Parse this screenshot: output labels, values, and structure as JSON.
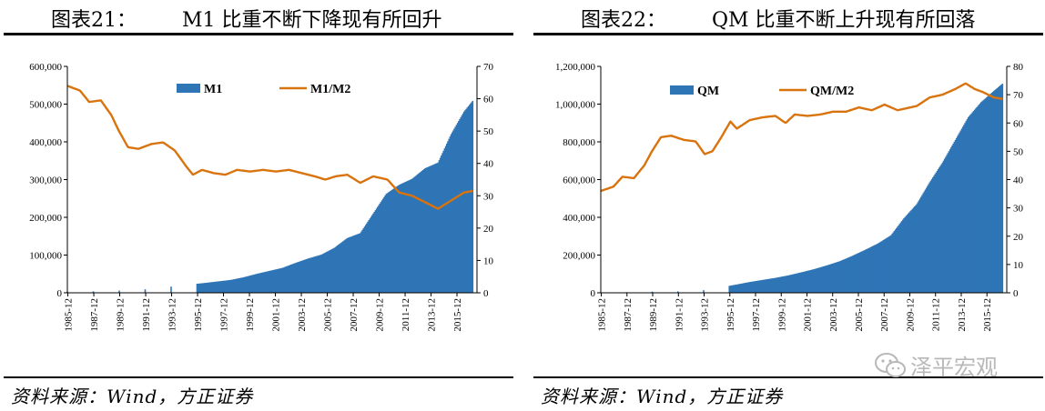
{
  "left": {
    "figure_number": "图表21：",
    "title": "M1 比重不断下降现有所回升",
    "source": "资料来源：Wind，方正证券"
  },
  "right": {
    "figure_number": "图表22：",
    "title": "QM 比重不断上升现有所回落",
    "source": "资料来源：Wind，方正证券"
  },
  "watermark": {
    "text": "泽平宏观",
    "icon": "wechat-icon"
  },
  "chart_data": [
    {
      "type": "bar+line",
      "title": "M1 比重不断下降现有所回升",
      "x_tick_labels": [
        "1985-12",
        "1987-12",
        "1989-12",
        "1991-12",
        "1993-12",
        "1995-12",
        "1997-12",
        "1999-12",
        "2001-12",
        "2003-12",
        "2005-12",
        "2007-12",
        "2009-12",
        "2011-12",
        "2013-12",
        "2015-12"
      ],
      "x_range": [
        1985.92,
        2017.5
      ],
      "y_left": {
        "ticks": [
          "0",
          "100,000",
          "200,000",
          "300,000",
          "400,000",
          "500,000",
          "600,000"
        ],
        "range": [
          0,
          600000
        ]
      },
      "y_right": {
        "ticks": [
          "0",
          "10",
          "20",
          "30",
          "40",
          "50",
          "60",
          "70"
        ],
        "range": [
          0,
          70
        ]
      },
      "legend_position": "top-center",
      "series": [
        {
          "name": "M1",
          "kind": "bar",
          "axis": "left",
          "color": "#2e75b6",
          "points": [
            [
              1985.92,
              2800
            ],
            [
              1987.92,
              3900
            ],
            [
              1989.92,
              6000
            ],
            [
              1991.92,
              9200
            ],
            [
              1993.92,
              16300
            ],
            [
              1995.92,
              23900
            ],
            [
              1996.5,
              26000
            ],
            [
              1997.5,
              30000
            ],
            [
              1998.5,
              34000
            ],
            [
              1999.5,
              41000
            ],
            [
              2000.5,
              50000
            ],
            [
              2001.5,
              58000
            ],
            [
              2002.5,
              66000
            ],
            [
              2003.5,
              79000
            ],
            [
              2004.5,
              91000
            ],
            [
              2005.5,
              101000
            ],
            [
              2006.5,
              119000
            ],
            [
              2007.5,
              145000
            ],
            [
              2008.5,
              158000
            ],
            [
              2009.5,
              210000
            ],
            [
              2010.5,
              262000
            ],
            [
              2011.5,
              286000
            ],
            [
              2012.5,
              302000
            ],
            [
              2013.5,
              330000
            ],
            [
              2014.5,
              345000
            ],
            [
              2015.5,
              420000
            ],
            [
              2016.5,
              480000
            ],
            [
              2017.2,
              510000
            ]
          ]
        },
        {
          "name": "M1/M2",
          "kind": "line",
          "axis": "right",
          "color": "#d9730d",
          "points": [
            [
              1985.92,
              64
            ],
            [
              1986.9,
              62.5
            ],
            [
              1987.6,
              59
            ],
            [
              1988.5,
              59.5
            ],
            [
              1989.3,
              55
            ],
            [
              1989.9,
              50
            ],
            [
              1990.6,
              45
            ],
            [
              1991.4,
              44.5
            ],
            [
              1992.4,
              46
            ],
            [
              1993.3,
              46.5
            ],
            [
              1994.2,
              44
            ],
            [
              1995.1,
              39
            ],
            [
              1995.6,
              36.5
            ],
            [
              1996.3,
              38
            ],
            [
              1997.2,
              37
            ],
            [
              1998.1,
              36.5
            ],
            [
              1999.0,
              38
            ],
            [
              2000.0,
              37.5
            ],
            [
              2001.0,
              38
            ],
            [
              2002.0,
              37.5
            ],
            [
              2003.0,
              38
            ],
            [
              2004.0,
              37
            ],
            [
              2005.0,
              36
            ],
            [
              2005.8,
              35
            ],
            [
              2006.6,
              36
            ],
            [
              2007.5,
              36.5
            ],
            [
              2008.5,
              34
            ],
            [
              2009.5,
              36
            ],
            [
              2010.6,
              35
            ],
            [
              2011.5,
              31
            ],
            [
              2012.5,
              30
            ],
            [
              2013.5,
              28
            ],
            [
              2014.5,
              26
            ],
            [
              2015.5,
              28.5
            ],
            [
              2016.5,
              31
            ],
            [
              2017.2,
              31.5
            ]
          ]
        }
      ]
    },
    {
      "type": "bar+line",
      "title": "QM 比重不断上升现有所回落",
      "x_tick_labels": [
        "1985-12",
        "1987-12",
        "1989-12",
        "1991-12",
        "1993-12",
        "1995-12",
        "1997-12",
        "1999-12",
        "2001-12",
        "2003-12",
        "2005-12",
        "2007-12",
        "2009-12",
        "2011-12",
        "2013-12",
        "2015-12"
      ],
      "x_range": [
        1985.92,
        2017.5
      ],
      "y_left": {
        "ticks": [
          "0",
          "200,000",
          "400,000",
          "600,000",
          "800,000",
          "1,000,000",
          "1,200,000"
        ],
        "range": [
          0,
          1200000
        ]
      },
      "y_right": {
        "ticks": [
          "0",
          "10",
          "20",
          "30",
          "40",
          "50",
          "60",
          "70",
          "80"
        ],
        "range": [
          0,
          80
        ]
      },
      "legend_position": "top-center",
      "series": [
        {
          "name": "QM",
          "kind": "bar",
          "axis": "left",
          "color": "#2e75b6",
          "points": [
            [
              1985.92,
              1900
            ],
            [
              1987.92,
              3200
            ],
            [
              1989.92,
              6100
            ],
            [
              1991.92,
              7600
            ],
            [
              1993.92,
              13800
            ],
            [
              1995.92,
              36800
            ],
            [
              1996.5,
              44000
            ],
            [
              1997.5,
              57000
            ],
            [
              1998.5,
              68000
            ],
            [
              1999.5,
              79000
            ],
            [
              2000.5,
              92000
            ],
            [
              2001.5,
              108000
            ],
            [
              2002.5,
              125000
            ],
            [
              2003.5,
              145000
            ],
            [
              2004.5,
              167000
            ],
            [
              2005.5,
              196000
            ],
            [
              2006.5,
              228000
            ],
            [
              2007.5,
              262000
            ],
            [
              2008.5,
              305000
            ],
            [
              2009.5,
              395000
            ],
            [
              2010.5,
              470000
            ],
            [
              2011.5,
              585000
            ],
            [
              2012.5,
              690000
            ],
            [
              2013.5,
              810000
            ],
            [
              2014.5,
              930000
            ],
            [
              2015.5,
              1010000
            ],
            [
              2016.5,
              1070000
            ],
            [
              2017.2,
              1110000
            ]
          ]
        },
        {
          "name": "QM/M2",
          "kind": "line",
          "axis": "right",
          "color": "#d9730d",
          "points": [
            [
              1985.92,
              36
            ],
            [
              1986.9,
              37.5
            ],
            [
              1987.6,
              41
            ],
            [
              1988.5,
              40.5
            ],
            [
              1989.3,
              45
            ],
            [
              1989.9,
              50
            ],
            [
              1990.6,
              55
            ],
            [
              1991.4,
              55.5
            ],
            [
              1992.4,
              54
            ],
            [
              1993.3,
              53.5
            ],
            [
              1994.0,
              49
            ],
            [
              1994.6,
              50
            ],
            [
              1995.3,
              55
            ],
            [
              1996.0,
              60.5
            ],
            [
              1996.5,
              58
            ],
            [
              1997.5,
              61
            ],
            [
              1998.5,
              62
            ],
            [
              1999.5,
              62.5
            ],
            [
              2000.3,
              60
            ],
            [
              2001.0,
              63
            ],
            [
              2002.0,
              62.5
            ],
            [
              2003.0,
              63
            ],
            [
              2004.0,
              64
            ],
            [
              2005.0,
              64
            ],
            [
              2006.0,
              65.5
            ],
            [
              2007.0,
              64.5
            ],
            [
              2008.0,
              66.5
            ],
            [
              2009.0,
              64.5
            ],
            [
              2010.5,
              66
            ],
            [
              2011.5,
              69
            ],
            [
              2012.5,
              70
            ],
            [
              2013.5,
              72
            ],
            [
              2014.3,
              74
            ],
            [
              2015.0,
              72
            ],
            [
              2015.6,
              71
            ],
            [
              2016.5,
              69
            ],
            [
              2017.2,
              68.5
            ]
          ]
        }
      ]
    }
  ]
}
